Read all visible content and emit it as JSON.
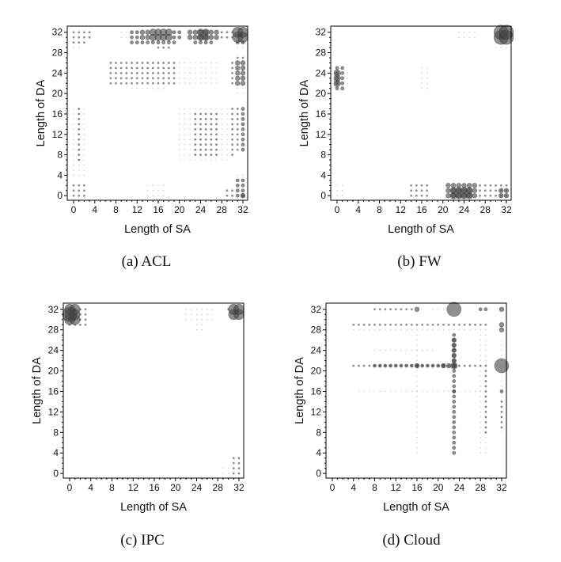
{
  "chart_data": [
    {
      "id": "a",
      "type": "scatter",
      "caption": "(a)  ACL",
      "xlabel": "Length of SA",
      "ylabel": "Length of DA",
      "xlim": [
        -1.2,
        32.9
      ],
      "ylim": [
        -0.9,
        33.2
      ],
      "xticks": [
        0,
        4,
        8,
        12,
        16,
        20,
        24,
        28,
        32
      ],
      "yticks": [
        0,
        4,
        8,
        12,
        16,
        20,
        24,
        28,
        32
      ],
      "point_runs_format": "[sa_from, sa_to, da_from, da_to, relative_size]",
      "points": [
        [
          0,
          3,
          31,
          32,
          2
        ],
        [
          0,
          2,
          30,
          30,
          2
        ],
        [
          0,
          1,
          29,
          29,
          1
        ],
        [
          9,
          10,
          31,
          32,
          1
        ],
        [
          11,
          12,
          31,
          32,
          3
        ],
        [
          13,
          14,
          31,
          32,
          4
        ],
        [
          19,
          20,
          31,
          32,
          3
        ],
        [
          15,
          18,
          31,
          32,
          5
        ],
        [
          11,
          19,
          30,
          30,
          3
        ],
        [
          16,
          18,
          29,
          29,
          2
        ],
        [
          22,
          27,
          31,
          32,
          4
        ],
        [
          24,
          25,
          31,
          32,
          5
        ],
        [
          28,
          30,
          31,
          32,
          2
        ],
        [
          23,
          26,
          30,
          30,
          3
        ],
        [
          31,
          32,
          30,
          30,
          3
        ],
        [
          31,
          32,
          29,
          29,
          1
        ],
        [
          31,
          32,
          31,
          32,
          6
        ],
        [
          7,
          19,
          22,
          26,
          2
        ],
        [
          11,
          17,
          21,
          21,
          1
        ],
        [
          20,
          27,
          22,
          26,
          1
        ],
        [
          30,
          30,
          22,
          26,
          2
        ],
        [
          31,
          32,
          22,
          26,
          4
        ],
        [
          31,
          32,
          27,
          27,
          2
        ],
        [
          31,
          32,
          20,
          21,
          1
        ],
        [
          0,
          2,
          4,
          17,
          1
        ],
        [
          1,
          1,
          7,
          17,
          2
        ],
        [
          20,
          29,
          7,
          17,
          1
        ],
        [
          23,
          27,
          8,
          16,
          2
        ],
        [
          30,
          30,
          8,
          17,
          2
        ],
        [
          31,
          31,
          9,
          17,
          2
        ],
        [
          32,
          32,
          9,
          17,
          3
        ],
        [
          0,
          2,
          0,
          2,
          2
        ],
        [
          14,
          17,
          0,
          2,
          1
        ],
        [
          29,
          30,
          0,
          1,
          2
        ],
        [
          31,
          32,
          0,
          3,
          3
        ],
        [
          32,
          32,
          0,
          0,
          4
        ],
        [
          31,
          32,
          4,
          4,
          1
        ]
      ]
    },
    {
      "id": "b",
      "type": "scatter",
      "caption": "(b)  FW",
      "xlabel": "Length of SA",
      "ylabel": "Length of DA",
      "xlim": [
        -1.2,
        32.9
      ],
      "ylim": [
        -0.9,
        33.2
      ],
      "xticks": [
        0,
        4,
        8,
        12,
        16,
        20,
        24,
        28,
        32
      ],
      "yticks": [
        0,
        4,
        8,
        12,
        16,
        20,
        24,
        28,
        32
      ],
      "point_runs_format": "[sa_from, sa_to, da_from, da_to, relative_size]",
      "points": [
        [
          0,
          1,
          21,
          25,
          3
        ],
        [
          0,
          0,
          22,
          24,
          5
        ],
        [
          2,
          2,
          22,
          24,
          1
        ],
        [
          23,
          26,
          31,
          32,
          1
        ],
        [
          30,
          32,
          29,
          30,
          1
        ],
        [
          31,
          32,
          31,
          32,
          7
        ],
        [
          14,
          17,
          0,
          2,
          2
        ],
        [
          21,
          26,
          0,
          2,
          4
        ],
        [
          22,
          25,
          0,
          1,
          5
        ],
        [
          27,
          28,
          0,
          2,
          2
        ],
        [
          29,
          32,
          0,
          2,
          2
        ],
        [
          31,
          32,
          0,
          1,
          4
        ],
        [
          16,
          17,
          21,
          25,
          1
        ],
        [
          0,
          1,
          0,
          2,
          1
        ]
      ]
    },
    {
      "id": "c",
      "type": "scatter",
      "caption": "(c)  IPC",
      "xlabel": "Length of SA",
      "ylabel": "Length of DA",
      "xlim": [
        -1.2,
        32.9
      ],
      "ylim": [
        -0.9,
        33.2
      ],
      "xticks": [
        0,
        4,
        8,
        12,
        16,
        20,
        24,
        28,
        32
      ],
      "yticks": [
        0,
        4,
        8,
        12,
        16,
        20,
        24,
        28,
        32
      ],
      "point_runs_format": "[sa_from, sa_to, da_from, da_to, relative_size]",
      "points": [
        [
          0,
          3,
          29,
          32,
          2
        ],
        [
          0,
          1,
          30,
          32,
          6
        ],
        [
          0,
          0,
          31,
          31,
          7
        ],
        [
          22,
          27,
          30,
          32,
          1
        ],
        [
          24,
          25,
          28,
          29,
          1
        ],
        [
          30,
          30,
          32,
          32,
          2
        ],
        [
          31,
          32,
          31,
          32,
          6
        ],
        [
          31,
          32,
          0,
          3,
          2
        ],
        [
          29,
          30,
          0,
          1,
          1
        ]
      ]
    },
    {
      "id": "d",
      "type": "scatter",
      "caption": "(d)  Cloud",
      "xlabel": "Length of SA",
      "ylabel": "Length of DA",
      "xlim": [
        -1.2,
        32.9
      ],
      "ylim": [
        -0.9,
        33.2
      ],
      "xticks": [
        0,
        4,
        8,
        12,
        16,
        20,
        24,
        28,
        32
      ],
      "yticks": [
        0,
        4,
        8,
        12,
        16,
        20,
        24,
        28,
        32
      ],
      "point_runs_format": "[sa_from, sa_to, da_from, da_to, relative_size]",
      "points": [
        [
          8,
          15,
          32,
          32,
          2
        ],
        [
          16,
          16,
          32,
          32,
          4
        ],
        [
          19,
          22,
          32,
          32,
          1
        ],
        [
          28,
          29,
          32,
          32,
          3
        ],
        [
          32,
          32,
          32,
          32,
          4
        ],
        [
          23,
          23,
          32,
          32,
          7
        ],
        [
          4,
          29,
          29,
          29,
          2
        ],
        [
          4,
          29,
          28,
          28,
          1
        ],
        [
          32,
          32,
          28,
          29,
          4
        ],
        [
          8,
          19,
          24,
          24,
          1
        ],
        [
          4,
          29,
          21,
          21,
          2
        ],
        [
          8,
          21,
          21,
          21,
          3
        ],
        [
          16,
          16,
          21,
          21,
          4
        ],
        [
          21,
          23,
          21,
          21,
          4
        ],
        [
          23,
          23,
          21,
          21,
          5
        ],
        [
          32,
          32,
          21,
          21,
          7
        ],
        [
          5,
          28,
          16,
          16,
          1
        ],
        [
          23,
          23,
          16,
          16,
          3
        ],
        [
          32,
          32,
          16,
          16,
          3
        ],
        [
          16,
          16,
          4,
          27,
          1
        ],
        [
          23,
          23,
          4,
          27,
          3
        ],
        [
          23,
          23,
          22,
          26,
          4
        ],
        [
          28,
          29,
          4,
          27,
          1
        ],
        [
          29,
          29,
          8,
          20,
          2
        ],
        [
          32,
          32,
          8,
          26,
          1
        ],
        [
          32,
          32,
          9,
          14,
          2
        ]
      ]
    }
  ]
}
